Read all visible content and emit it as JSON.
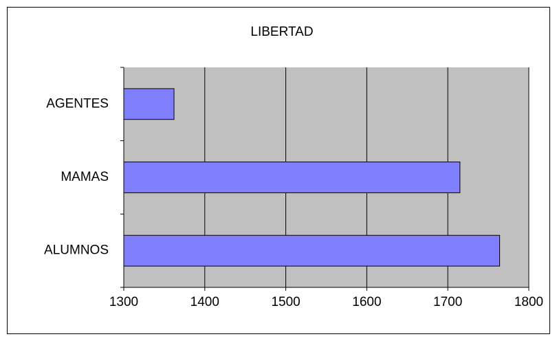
{
  "chart_data": {
    "type": "bar",
    "orientation": "horizontal",
    "title": "LIBERTAD",
    "categories": [
      "ALUMNOS",
      "MAMAS",
      "AGENTES"
    ],
    "values": [
      1764,
      1715,
      1362
    ],
    "color": "#8080ff",
    "xlim": [
      1300,
      1800
    ],
    "xticks": [
      1300,
      1400,
      1500,
      1600,
      1700,
      1800
    ],
    "grid": true
  }
}
